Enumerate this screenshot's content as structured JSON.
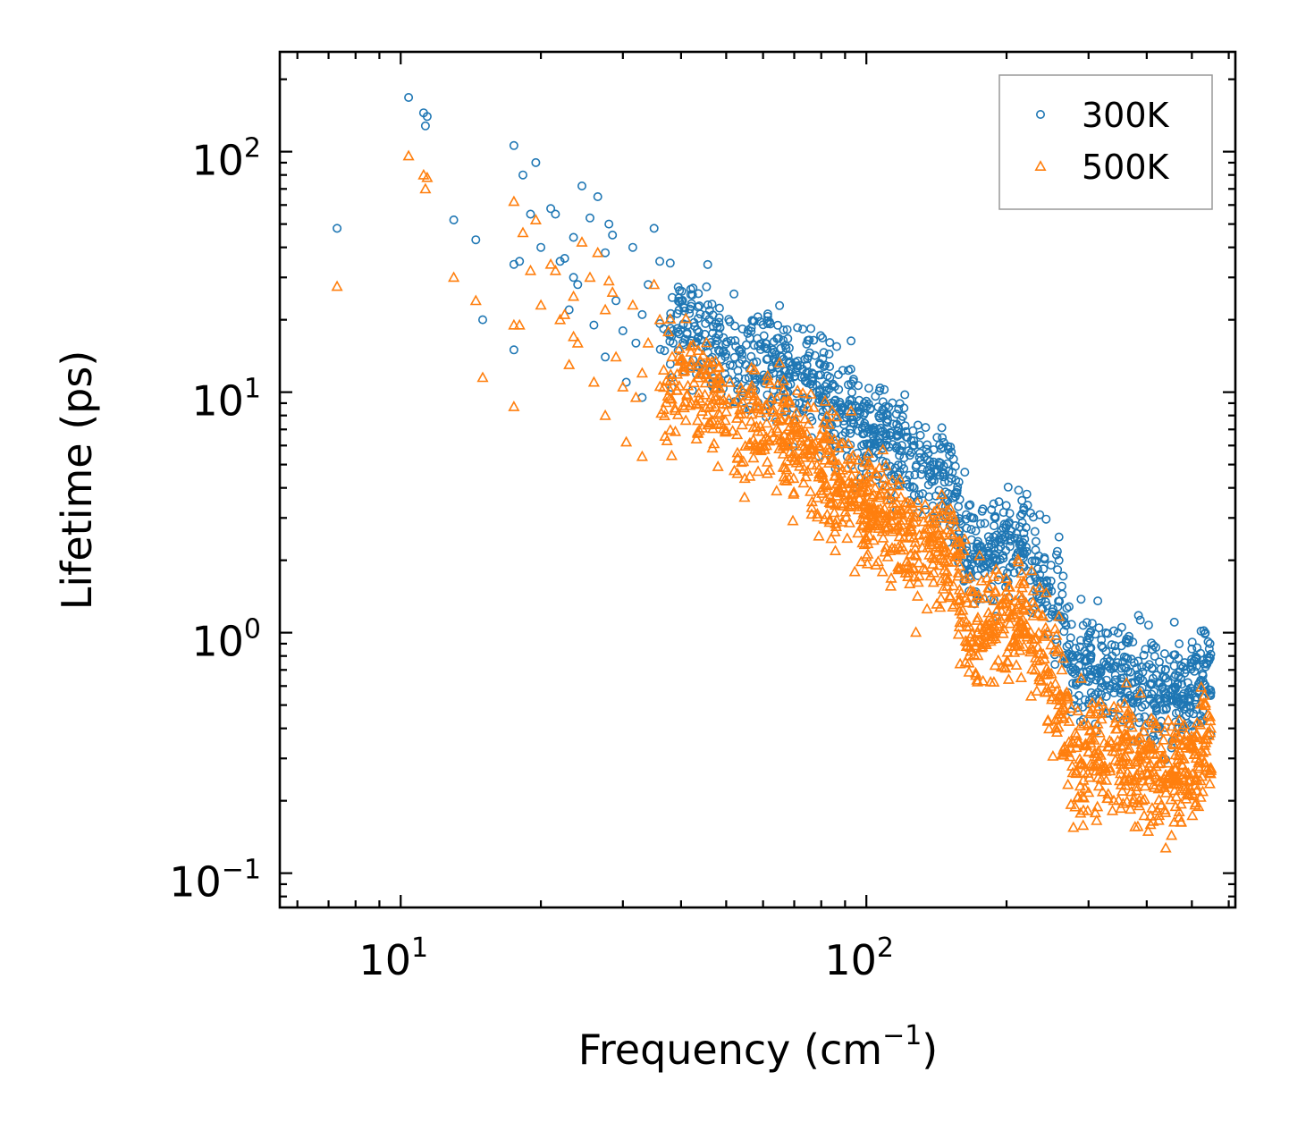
{
  "chart_data": {
    "type": "scatter",
    "title": "",
    "xlabel": "Frequency (cm",
    "xlabel_sup": "−1",
    "xlabel_end": ")",
    "ylabel": "Lifetime (ps)",
    "xscale": "log",
    "yscale": "log",
    "xlim": [
      5.5,
      620
    ],
    "ylim": [
      0.072,
      260
    ],
    "x_ticks": [
      {
        "base": "10",
        "exp": "1",
        "value": 10
      },
      {
        "base": "10",
        "exp": "2",
        "value": 100
      }
    ],
    "y_ticks": [
      {
        "base": "10",
        "exp": "−1",
        "value": 0.1
      },
      {
        "base": "10",
        "exp": "0",
        "value": 1
      },
      {
        "base": "10",
        "exp": "1",
        "value": 10
      },
      {
        "base": "10",
        "exp": "2",
        "value": 100
      }
    ],
    "legend_position": "top-right",
    "series": [
      {
        "name": "300K",
        "marker": "circle",
        "color": "#1f77b4",
        "points": [
          [
            7.3,
            48
          ],
          [
            10.4,
            168
          ],
          [
            11.2,
            145
          ],
          [
            11.3,
            128
          ],
          [
            11.4,
            140
          ],
          [
            13.0,
            52
          ],
          [
            14.5,
            43
          ],
          [
            15.0,
            20
          ],
          [
            17.5,
            106
          ],
          [
            17.5,
            34
          ],
          [
            17.5,
            15
          ],
          [
            18.0,
            35
          ],
          [
            18.3,
            80
          ],
          [
            19.0,
            55
          ],
          [
            19.5,
            90
          ],
          [
            20.0,
            40
          ],
          [
            21.0,
            58
          ],
          [
            21.5,
            55
          ],
          [
            22.0,
            35
          ],
          [
            22.5,
            36
          ],
          [
            23.0,
            22
          ],
          [
            23.5,
            44
          ],
          [
            23.5,
            30
          ],
          [
            24.0,
            28
          ],
          [
            24.5,
            72
          ],
          [
            25.5,
            53
          ],
          [
            26.0,
            19
          ],
          [
            26.5,
            65
          ],
          [
            27.5,
            38
          ],
          [
            27.5,
            14
          ],
          [
            28.0,
            50
          ],
          [
            28.5,
            45
          ],
          [
            29.0,
            24
          ],
          [
            30.0,
            18
          ],
          [
            30.5,
            11
          ],
          [
            31.5,
            40
          ],
          [
            32.0,
            16
          ],
          [
            33.0,
            21
          ],
          [
            33.0,
            9.5
          ],
          [
            34.0,
            28
          ],
          [
            35.0,
            48
          ],
          [
            36.0,
            35
          ]
        ],
        "trend": [
          [
            36,
            20
          ],
          [
            45,
            17
          ],
          [
            55,
            14
          ],
          [
            65,
            12
          ],
          [
            80,
            10.5
          ],
          [
            90,
            8
          ],
          [
            100,
            7.2
          ],
          [
            110,
            6.6
          ],
          [
            125,
            5.5
          ],
          [
            140,
            4.6
          ],
          [
            155,
            3.5
          ],
          [
            165,
            2.0
          ],
          [
            180,
            2.3
          ],
          [
            200,
            2.3
          ],
          [
            220,
            2.4
          ],
          [
            240,
            1.7
          ],
          [
            260,
            1.2
          ],
          [
            280,
            0.65
          ],
          [
            300,
            0.72
          ],
          [
            350,
            0.68
          ],
          [
            400,
            0.58
          ],
          [
            450,
            0.55
          ],
          [
            500,
            0.6
          ],
          [
            550,
            0.72
          ]
        ],
        "spread_dex": 0.2
      },
      {
        "name": "500K",
        "marker": "triangle",
        "color": "#ff7f0e",
        "points": [
          [
            7.3,
            27.5
          ],
          [
            10.4,
            96
          ],
          [
            11.2,
            80
          ],
          [
            11.3,
            70
          ],
          [
            11.4,
            78
          ],
          [
            13.0,
            30
          ],
          [
            14.5,
            24
          ],
          [
            15.0,
            11.5
          ],
          [
            17.5,
            62
          ],
          [
            17.5,
            19
          ],
          [
            17.5,
            8.7
          ],
          [
            18.0,
            19
          ],
          [
            18.3,
            46
          ],
          [
            19.0,
            32
          ],
          [
            19.5,
            52
          ],
          [
            20.0,
            23
          ],
          [
            21.0,
            34
          ],
          [
            21.5,
            32
          ],
          [
            22.0,
            20
          ],
          [
            22.5,
            21
          ],
          [
            23.0,
            13
          ],
          [
            23.5,
            25
          ],
          [
            23.5,
            17
          ],
          [
            24.0,
            16
          ],
          [
            24.5,
            42
          ],
          [
            25.5,
            30
          ],
          [
            26.0,
            11
          ],
          [
            26.5,
            38
          ],
          [
            27.5,
            22
          ],
          [
            27.5,
            8
          ],
          [
            28.0,
            29
          ],
          [
            28.5,
            26
          ],
          [
            29.0,
            14
          ],
          [
            30.0,
            10.5
          ],
          [
            30.5,
            6.2
          ],
          [
            31.5,
            23
          ],
          [
            32.0,
            9.5
          ],
          [
            33.0,
            12
          ],
          [
            33.0,
            5.4
          ],
          [
            34.0,
            16
          ],
          [
            35.0,
            28
          ],
          [
            36.0,
            20
          ]
        ],
        "trend": [
          [
            36,
            11
          ],
          [
            45,
            9.5
          ],
          [
            55,
            7.5
          ],
          [
            65,
            6.5
          ],
          [
            80,
            5.2
          ],
          [
            90,
            3.8
          ],
          [
            100,
            3.4
          ],
          [
            110,
            3.0
          ],
          [
            125,
            2.6
          ],
          [
            140,
            2.2
          ],
          [
            155,
            1.9
          ],
          [
            165,
            0.95
          ],
          [
            180,
            1.1
          ],
          [
            200,
            1.1
          ],
          [
            220,
            1.15
          ],
          [
            240,
            0.8
          ],
          [
            260,
            0.52
          ],
          [
            280,
            0.28
          ],
          [
            300,
            0.32
          ],
          [
            350,
            0.32
          ],
          [
            400,
            0.27
          ],
          [
            450,
            0.25
          ],
          [
            500,
            0.28
          ],
          [
            550,
            0.35
          ]
        ],
        "spread_dex": 0.22
      }
    ]
  }
}
